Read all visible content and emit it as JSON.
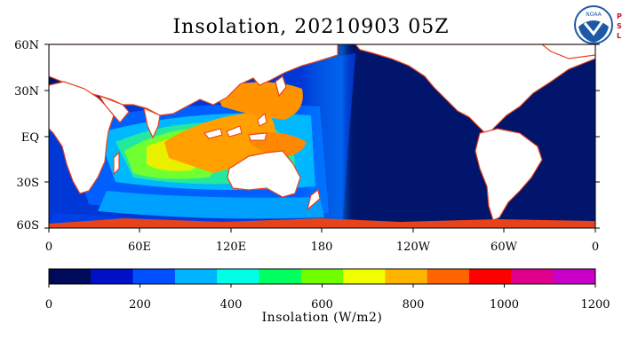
{
  "title": "Insolation, 20210903 05Z",
  "logos": {
    "noaa_text": "NOAA",
    "psl_letters": [
      "P",
      "S",
      "L"
    ],
    "noaa_color": "#1c5aa6",
    "psl_color": "#c8102e"
  },
  "map": {
    "lat_labels": [
      "60N",
      "30N",
      "EQ",
      "30S",
      "60S"
    ],
    "lon_labels": [
      "0",
      "60E",
      "120E",
      "180",
      "120W",
      "60W",
      "0"
    ],
    "ocean_night_color": "#00156b",
    "land_color": "#ffffff",
    "coast_color": "#e8421a",
    "day_boundary_lon": 180
  },
  "colorbar": {
    "tick_labels": [
      "0",
      "200",
      "400",
      "600",
      "800",
      "1000",
      "1200"
    ],
    "label": "Insolation (W/m2)",
    "min": 0,
    "max": 1200,
    "colors": [
      "#000a5a",
      "#0010c8",
      "#0050ff",
      "#00b4ff",
      "#00ffe6",
      "#00ff60",
      "#70ff00",
      "#f0ff00",
      "#ffb400",
      "#ff6400",
      "#ff0000",
      "#e0008c",
      "#c800c8"
    ]
  }
}
